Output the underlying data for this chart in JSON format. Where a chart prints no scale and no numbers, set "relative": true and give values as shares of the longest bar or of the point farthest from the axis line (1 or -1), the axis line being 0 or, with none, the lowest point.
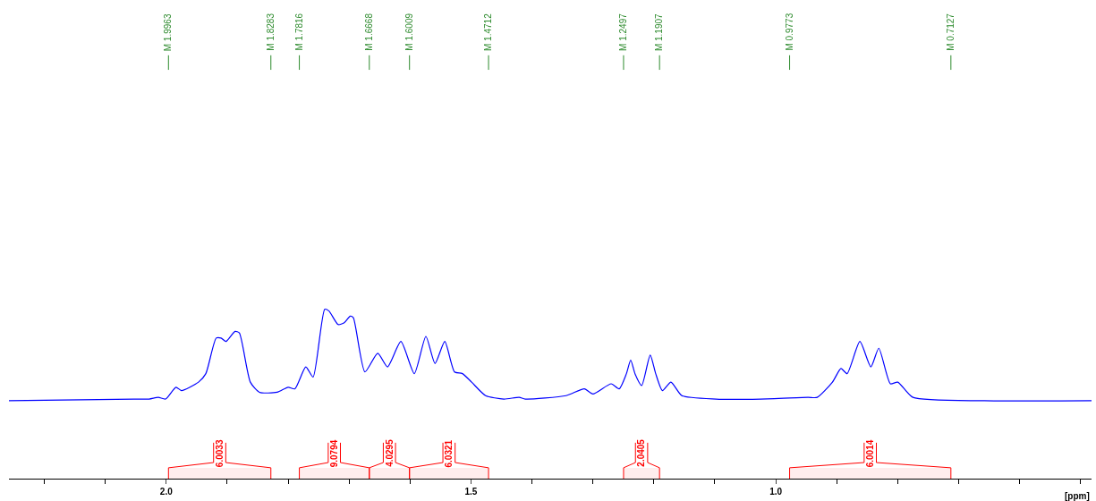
{
  "chart_data": {
    "type": "line",
    "relative": true,
    "xlabel": "[ppm]",
    "xlim": [
      2.258,
      0.482
    ],
    "xticks": [
      {
        "value": 2.2,
        "label": null
      },
      {
        "value": 2.1,
        "label": null
      },
      {
        "value": 2.0,
        "label": "2.0"
      },
      {
        "value": 1.9,
        "label": null
      },
      {
        "value": 1.8,
        "label": null
      },
      {
        "value": 1.7,
        "label": null
      },
      {
        "value": 1.6,
        "label": null
      },
      {
        "value": 1.5,
        "label": "1.5"
      },
      {
        "value": 1.4,
        "label": null
      },
      {
        "value": 1.3,
        "label": null
      },
      {
        "value": 1.2,
        "label": null
      },
      {
        "value": 1.1,
        "label": null
      },
      {
        "value": 1.0,
        "label": "1.0"
      },
      {
        "value": 0.9,
        "label": null
      },
      {
        "value": 0.8,
        "label": null
      },
      {
        "value": 0.7,
        "label": null
      },
      {
        "value": 0.6,
        "label": null
      },
      {
        "value": 0.5,
        "label": null
      }
    ],
    "grid": false,
    "legend": false,
    "marker": "none",
    "line_style": "solid",
    "series": [
      {
        "color": "#0000ff",
        "x": [
          2.258,
          2.053,
          2.028,
          2.013,
          2.001,
          1.984,
          1.975,
          1.947,
          1.935,
          1.918,
          1.91,
          1.902,
          1.887,
          1.88,
          1.862,
          1.847,
          1.818,
          1.8,
          1.789,
          1.771,
          1.759,
          1.74,
          1.733,
          1.718,
          1.708,
          1.698,
          1.693,
          1.674,
          1.653,
          1.637,
          1.615,
          1.593,
          1.574,
          1.559,
          1.543,
          1.527,
          1.514,
          1.499,
          1.476,
          1.446,
          1.421,
          1.411,
          1.344,
          1.314,
          1.3,
          1.27,
          1.257,
          1.245,
          1.238,
          1.231,
          1.22,
          1.206,
          1.197,
          1.186,
          1.172,
          1.154,
          1.098,
          1.025,
          0.947,
          0.932,
          0.907,
          0.893,
          0.883,
          0.862,
          0.844,
          0.831,
          0.812,
          0.8,
          0.775,
          0.658,
          0.482
        ],
        "values": [
          0.46,
          0.47,
          0.47,
          0.48,
          0.47,
          0.54,
          0.52,
          0.57,
          0.62,
          0.83,
          0.83,
          0.81,
          0.87,
          0.86,
          0.57,
          0.51,
          0.51,
          0.54,
          0.53,
          0.66,
          0.6,
          1,
          0.99,
          0.91,
          0.92,
          0.96,
          0.95,
          0.63,
          0.74,
          0.66,
          0.81,
          0.62,
          0.84,
          0.68,
          0.81,
          0.63,
          0.62,
          0.57,
          0.49,
          0.47,
          0.48,
          0.47,
          0.49,
          0.53,
          0.5,
          0.56,
          0.53,
          0.62,
          0.7,
          0.62,
          0.55,
          0.73,
          0.62,
          0.52,
          0.57,
          0.49,
          0.47,
          0.47,
          0.48,
          0.48,
          0.57,
          0.65,
          0.62,
          0.81,
          0.66,
          0.77,
          0.56,
          0.57,
          0.48,
          0.46,
          0.46
        ]
      }
    ],
    "ref_lines": [
      {
        "axis": "x",
        "value": 1.9963,
        "label": "M 1.9963",
        "color": "#2e8b2e"
      },
      {
        "axis": "x",
        "value": 1.8283,
        "label": "M 1.8283",
        "color": "#2e8b2e"
      },
      {
        "axis": "x",
        "value": 1.7816,
        "label": "M 1.7816",
        "color": "#2e8b2e"
      },
      {
        "axis": "x",
        "value": 1.6668,
        "label": "M 1.6668",
        "color": "#2e8b2e"
      },
      {
        "axis": "x",
        "value": 1.6009,
        "label": "M 1.6009",
        "color": "#2e8b2e"
      },
      {
        "axis": "x",
        "value": 1.4712,
        "label": "M 1.4712",
        "color": "#2e8b2e"
      },
      {
        "axis": "x",
        "value": 1.2497,
        "label": "M 1.2497",
        "color": "#2e8b2e"
      },
      {
        "axis": "x",
        "value": 1.1907,
        "label": "M 1.1907",
        "color": "#2e8b2e"
      },
      {
        "axis": "x",
        "value": 0.9773,
        "label": "M 0.9773",
        "color": "#2e8b2e"
      },
      {
        "axis": "x",
        "value": 0.7127,
        "label": "M 0.7127",
        "color": "#2e8b2e"
      }
    ],
    "bands": [
      {
        "axis": "x",
        "from": 1.9963,
        "to": 1.8283,
        "label": "6.0033",
        "color": "#ff0000"
      },
      {
        "axis": "x",
        "from": 1.7816,
        "to": 1.6668,
        "label": "9.0794",
        "color": "#ff0000"
      },
      {
        "axis": "x",
        "from": 1.6668,
        "to": 1.6009,
        "label": "4.0295",
        "color": "#ff0000"
      },
      {
        "axis": "x",
        "from": 1.6009,
        "to": 1.4712,
        "label": "6.0321",
        "color": "#ff0000"
      },
      {
        "axis": "x",
        "from": 1.2497,
        "to": 1.1907,
        "label": "2.0405",
        "color": "#ff0000"
      },
      {
        "axis": "x",
        "from": 0.9773,
        "to": 0.7127,
        "label": "6.0014",
        "color": "#ff0000"
      }
    ]
  }
}
